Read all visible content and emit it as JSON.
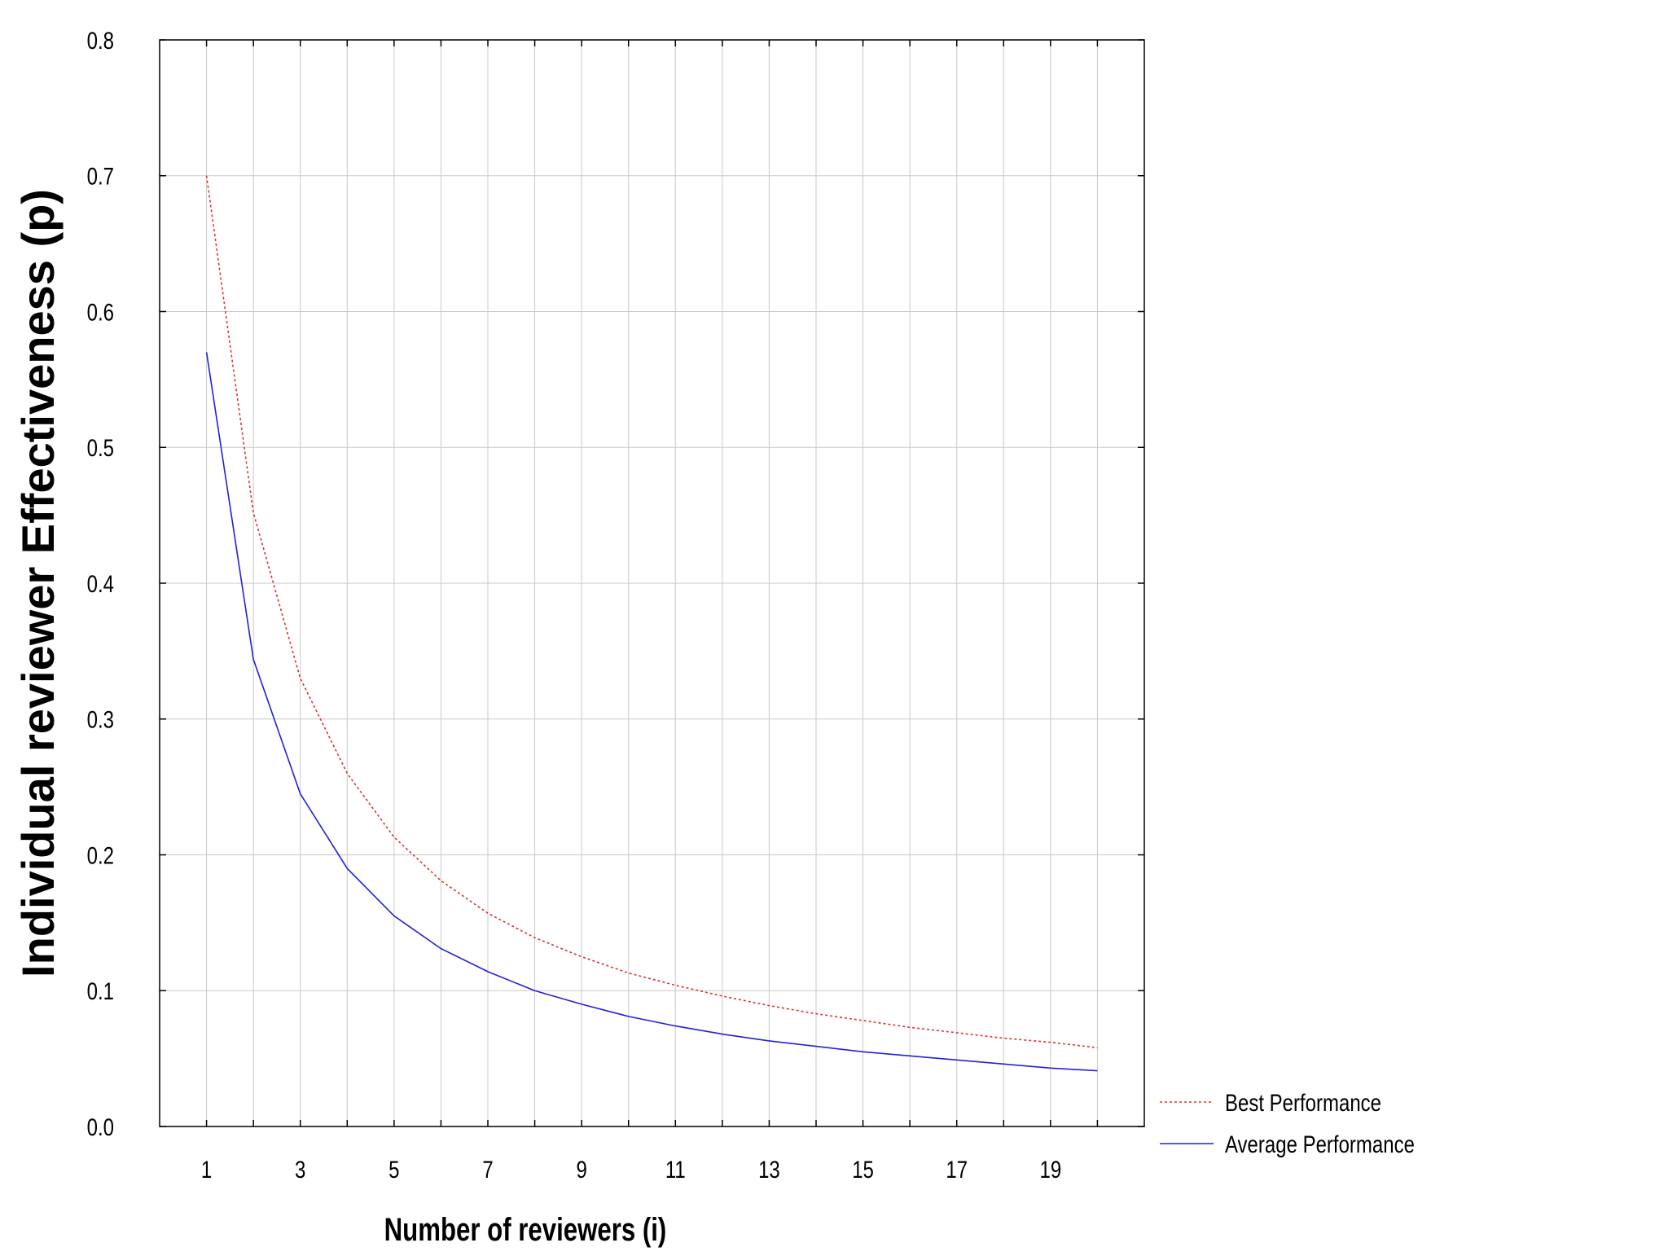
{
  "chart_data": {
    "type": "line",
    "title": "",
    "xlabel": "Number of reviewers (i)",
    "ylabel": "Individual reviewer Effectiveness (p)",
    "xlim": [
      0,
      21
    ],
    "ylim": [
      0.0,
      0.8
    ],
    "x_ticks": [
      "1",
      "3",
      "5",
      "7",
      "9",
      "11",
      "13",
      "15",
      "17",
      "19"
    ],
    "y_ticks": [
      "0.0",
      "0.1",
      "0.2",
      "0.3",
      "0.4",
      "0.5",
      "0.6",
      "0.7",
      "0.8"
    ],
    "grid": true,
    "legend_position": "bottom-right",
    "x": [
      1,
      2,
      3,
      4,
      5,
      6,
      7,
      8,
      9,
      10,
      11,
      12,
      13,
      14,
      15,
      16,
      17,
      18,
      19,
      20
    ],
    "series": [
      {
        "name": "Best Performance",
        "color": "#e03030",
        "style": "dotted",
        "values": [
          0.7,
          0.452,
          0.33,
          0.26,
          0.213,
          0.181,
          0.157,
          0.139,
          0.125,
          0.113,
          0.104,
          0.096,
          0.089,
          0.083,
          0.078,
          0.073,
          0.069,
          0.065,
          0.062,
          0.058
        ]
      },
      {
        "name": "Average Performance",
        "color": "#2020e0",
        "style": "solid",
        "values": [
          0.57,
          0.344,
          0.245,
          0.19,
          0.155,
          0.131,
          0.114,
          0.1,
          0.09,
          0.081,
          0.074,
          0.068,
          0.063,
          0.059,
          0.055,
          0.052,
          0.049,
          0.046,
          0.043,
          0.041
        ]
      }
    ]
  }
}
